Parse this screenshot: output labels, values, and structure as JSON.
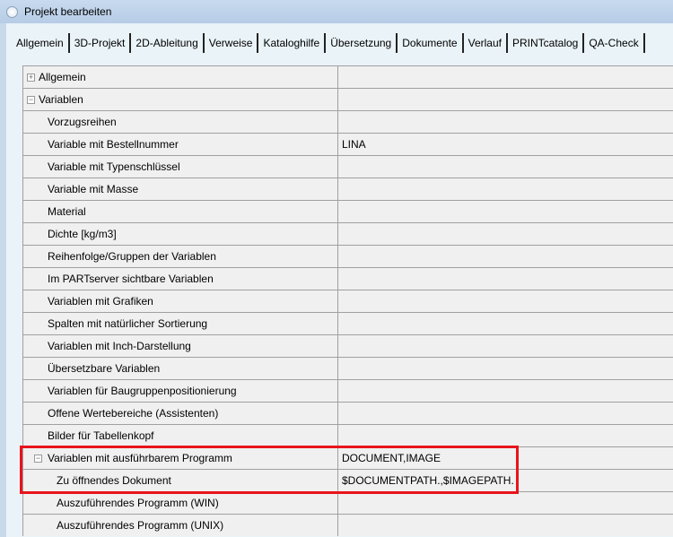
{
  "window": {
    "title": "Projekt bearbeiten"
  },
  "tabs": [
    "Allgemein",
    "3D-Projekt",
    "2D-Ableitung",
    "Verweise",
    "Kataloghilfe",
    "Übersetzung",
    "Dokumente",
    "Verlauf",
    "PRINTcatalog",
    "QA-Check"
  ],
  "active_tab": "Allgemein",
  "rows": [
    {
      "label": "Allgemein",
      "value": "",
      "level": 0,
      "expander": "plus"
    },
    {
      "label": "Variablen",
      "value": "",
      "level": 0,
      "expander": "minus"
    },
    {
      "label": "Vorzugsreihen",
      "value": "",
      "level": 1
    },
    {
      "label": "Variable mit Bestellnummer",
      "value": "LINA",
      "level": 1
    },
    {
      "label": "Variable mit Typenschlüssel",
      "value": "",
      "level": 1
    },
    {
      "label": "Variable mit Masse",
      "value": "",
      "level": 1
    },
    {
      "label": "Material",
      "value": "",
      "level": 1
    },
    {
      "label": "Dichte [kg/m3]",
      "value": "",
      "level": 1
    },
    {
      "label": "Reihenfolge/Gruppen der Variablen",
      "value": "",
      "level": 1
    },
    {
      "label": "Im PARTserver sichtbare Variablen",
      "value": "",
      "level": 1
    },
    {
      "label": "Variablen mit Grafiken",
      "value": "",
      "level": 1
    },
    {
      "label": "Spalten mit natürlicher Sortierung",
      "value": "",
      "level": 1
    },
    {
      "label": "Variablen mit Inch-Darstellung",
      "value": "",
      "level": 1
    },
    {
      "label": "Übersetzbare Variablen",
      "value": "",
      "level": 1
    },
    {
      "label": "Variablen für Baugruppenpositionierung",
      "value": "",
      "level": 1
    },
    {
      "label": "Offene Wertebereiche (Assistenten)",
      "value": "",
      "level": 1
    },
    {
      "label": "Bilder für Tabellenkopf",
      "value": "",
      "level": 1
    },
    {
      "label": "Variablen mit ausführbarem Programm",
      "value": "DOCUMENT,IMAGE",
      "level": 1,
      "expander": "minus"
    },
    {
      "label": "Zu öffnendes Dokument",
      "value": "$DOCUMENTPATH.,$IMAGEPATH.",
      "level": 2
    },
    {
      "label": "Auszuführendes Programm (WIN)",
      "value": "",
      "level": 2
    },
    {
      "label": "Auszuführendes Programm (UNIX)",
      "value": "",
      "level": 2
    }
  ],
  "highlight_color": "#e8141c"
}
